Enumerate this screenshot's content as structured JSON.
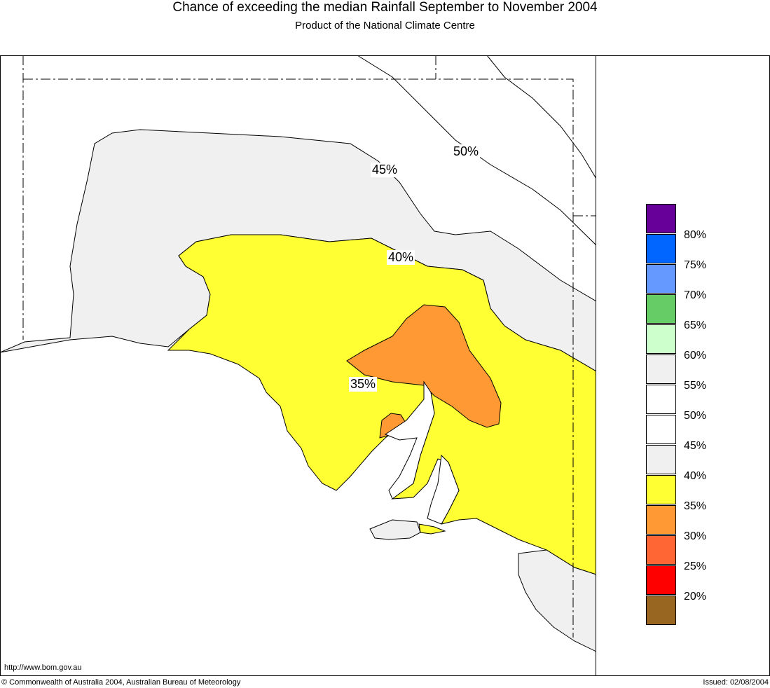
{
  "title": "Chance of exceeding the median Rainfall September to November 2004",
  "subtitle": "Product of the National Climate Centre",
  "url": "http://www.bom.gov.au",
  "copyright": "© Commonwealth of Australia 2004, Australian Bureau of Meteorology",
  "issued": "Issued: 02/08/2004",
  "colors": {
    "below_35": "#ff9933",
    "35_to_40": "#ffff33",
    "40_to_45": "#f0f0f0",
    "land_45_up": "#ffffff"
  },
  "legend": {
    "swatches": [
      {
        "color": "#660099"
      },
      {
        "color": "#0066ff"
      },
      {
        "color": "#6699ff"
      },
      {
        "color": "#66cc66"
      },
      {
        "color": "#ccffcc"
      },
      {
        "color": "#f0f0f0"
      },
      {
        "color": "#ffffff"
      },
      {
        "color": "#ffffff"
      },
      {
        "color": "#f0f0f0"
      },
      {
        "color": "#ffff33"
      },
      {
        "color": "#ff9933"
      },
      {
        "color": "#ff6633"
      },
      {
        "color": "#ff0000"
      },
      {
        "color": "#996622"
      }
    ],
    "labels": [
      "80%",
      "75%",
      "70%",
      "65%",
      "60%",
      "55%",
      "50%",
      "45%",
      "40%",
      "35%",
      "30%",
      "25%",
      "20%"
    ]
  },
  "contour_labels": {
    "c50": "50%",
    "c45": "45%",
    "c40": "40%",
    "c35": "35%"
  }
}
